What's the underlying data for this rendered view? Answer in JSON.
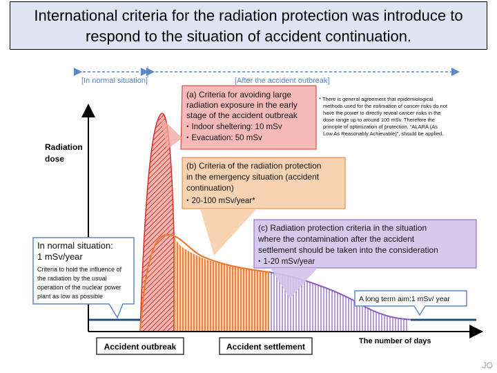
{
  "title": {
    "line1": "International criteria for the radiation protection was introduce to",
    "line2": "respond to the situation of accident continuation."
  },
  "phases": {
    "normal": "[In normal situation]",
    "after": "[After the accident outbreak]"
  },
  "axis": {
    "y_label_1": "Radiation",
    "y_label_2": "dose",
    "x_label": "The number of days"
  },
  "callout_a": {
    "line1": "(a) Criteria for avoiding large",
    "line2": "radiation exposure in the early",
    "line3": "stage of the accident outbreak",
    "line4": "・Indoor sheltering: 10 mSv",
    "line5": "・Evacuation: 50 mSv"
  },
  "note": {
    "line1": "* There is general agreement that epidemiological",
    "line2": "methods used for the estimation of cancer risks do not",
    "line3": "have the power to directly reveal cancer risks in the",
    "line4": "dose range up to around 100 mSv. Therefore the",
    "line5": "principle of optimization of protection, “ALARA (As",
    "line6": "Low As Reasonably Achievable)”, should be applied."
  },
  "callout_b": {
    "line1": "(b) Criteria of the radiation protection",
    "line2": "in the emergency situation (accident",
    "line3": "continuation)",
    "line4": "・20-100 mSv/year*"
  },
  "callout_c": {
    "line1": "(c) Radiation protection criteria in the situation",
    "line2": "where the contamination after the accident",
    "line3": "settlement should be taken into the consideration",
    "line4": "・1-20 mSv/year"
  },
  "normal_box": {
    "line1": "In normal situation:",
    "line2": "1 mSv/year",
    "line3": "Criteria to hold the influence of",
    "line4": "the radiation by the usual",
    "line5": "operation of the nuclear power",
    "line6": "plant as low as possible"
  },
  "long_term": "A long term aim:1 mSv/ year",
  "labels": {
    "outbreak": "Accident outbreak",
    "settlement": "Accident settlement"
  },
  "page_number": "JO",
  "colors": {
    "red": "#e0403a",
    "orange": "#ec7a2c",
    "purple": "#9a6cc4",
    "blue": "#1f4e8c",
    "arrow": "#5b87c8"
  }
}
